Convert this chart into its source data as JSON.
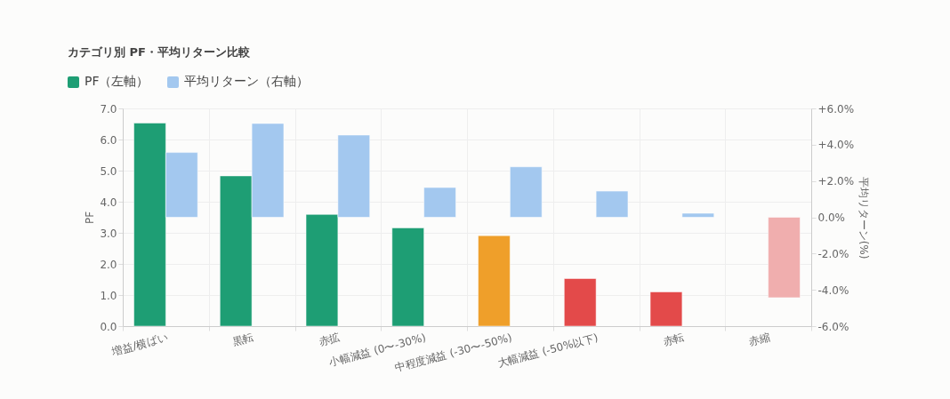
{
  "chart_data": {
    "type": "bar",
    "title": "カテゴリ別 PF・平均リターン比較",
    "ylabel": "PF",
    "y2label": "平均リターン(%)",
    "categories": [
      "増益/横ばい",
      "黒転",
      "赤拡",
      "小幅減益 (0〜-30%)",
      "中程度減益 (-30〜-50%)",
      "大幅減益 (-50%以下)",
      "赤転",
      "赤縮"
    ],
    "series": [
      {
        "name": "PF（左軸）",
        "color": "#1e9e74",
        "colors": [
          "#1e9e74",
          "#1e9e74",
          "#1e9e74",
          "#1e9e74",
          "#ef9f2a",
          "#e34a4a",
          "#e34a4a",
          "#e34a4a"
        ],
        "values": [
          6.53,
          4.83,
          3.59,
          3.16,
          2.91,
          1.53,
          1.1,
          null
        ]
      },
      {
        "name": "平均リターン（右軸）",
        "axis": "y2",
        "color": "#a3c8ef",
        "colors": [
          "#a3c8ef",
          "#a3c8ef",
          "#a3c8ef",
          "#a3c8ef",
          "#a3c8ef",
          "#a3c8ef",
          "#a3c8ef",
          "#f0aeae"
        ],
        "values": [
          3.57,
          5.17,
          4.53,
          1.64,
          2.78,
          1.44,
          0.22,
          -4.43
        ]
      }
    ],
    "ylim": [
      0,
      7
    ],
    "yticks": [
      {
        "value": 0,
        "label": "0.0"
      },
      {
        "value": 1,
        "label": "1.0"
      },
      {
        "value": 2,
        "label": "2.0"
      },
      {
        "value": 3,
        "label": "3.0"
      },
      {
        "value": 4,
        "label": "4.0"
      },
      {
        "value": 5,
        "label": "5.0"
      },
      {
        "value": 6,
        "label": "6.0"
      },
      {
        "value": 7,
        "label": "7.0"
      }
    ],
    "y2lim": [
      -6,
      6
    ],
    "y2ticks": [
      {
        "value": -6,
        "label": "-6.0%"
      },
      {
        "value": -4,
        "label": "-4.0%"
      },
      {
        "value": -2,
        "label": "-2.0%"
      },
      {
        "value": 0,
        "label": "0.0%"
      },
      {
        "value": 2,
        "label": "+2.0%"
      },
      {
        "value": 4,
        "label": "+4.0%"
      },
      {
        "value": 6,
        "label": "+6.0%"
      }
    ],
    "grid": true,
    "legend": "top left"
  }
}
